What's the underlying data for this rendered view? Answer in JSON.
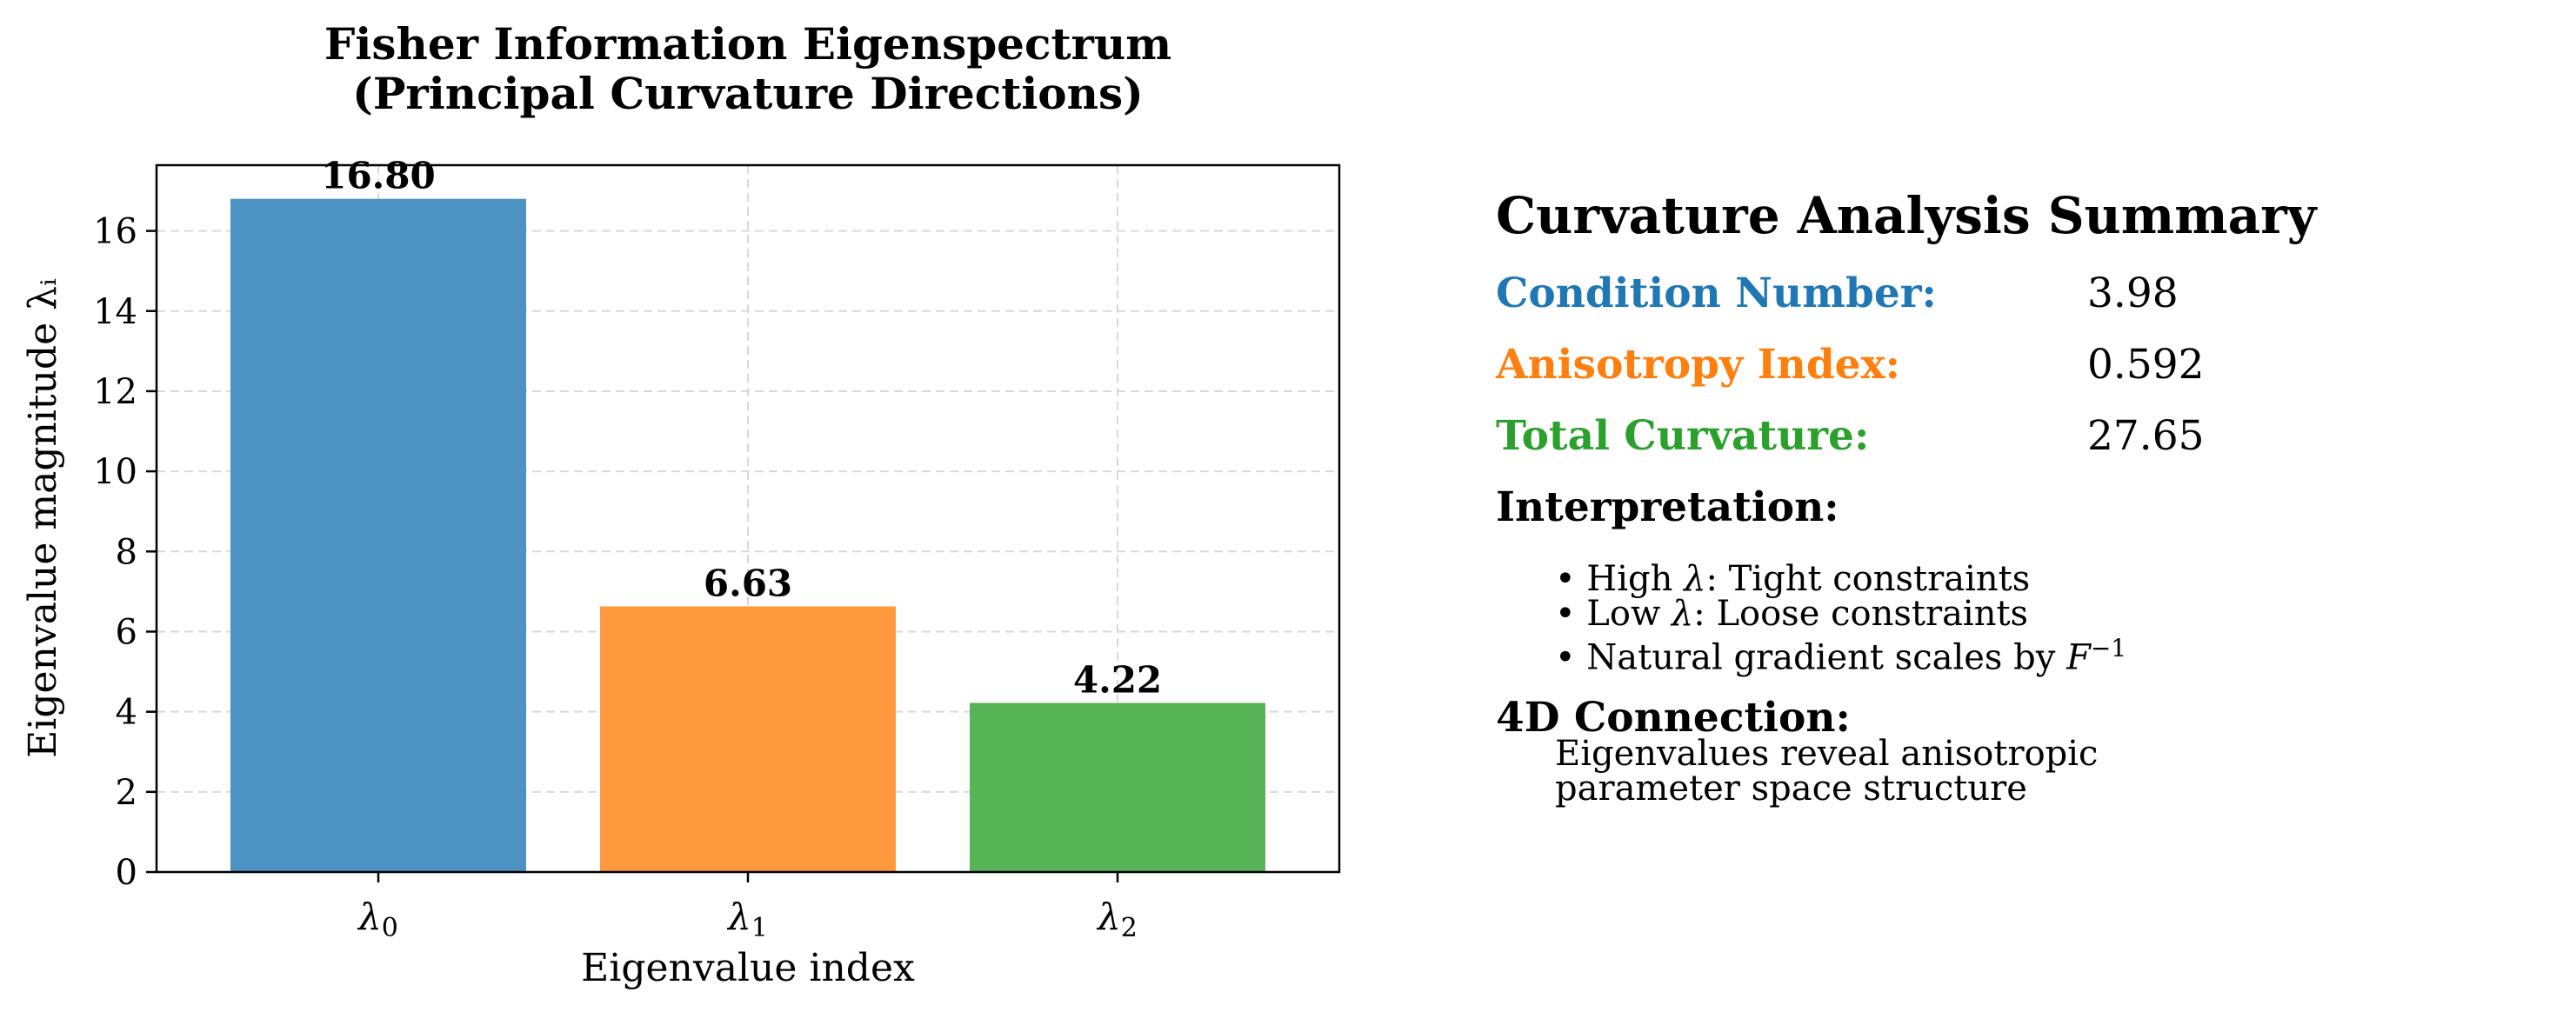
{
  "chart_data": {
    "type": "bar",
    "title_line1": "Fisher Information Eigenspectrum",
    "title_line2": "(Principal Curvature Directions)",
    "xlabel": "Eigenvalue index",
    "ylabel": "Eigenvalue magnitude λᵢ",
    "categories": [
      "λ0",
      "λ1",
      "λ2"
    ],
    "values": [
      16.8,
      6.63,
      4.22
    ],
    "value_labels": [
      "16.80",
      "6.63",
      "4.22"
    ],
    "bar_colors": [
      "#4c92c3",
      "#ff993e",
      "#56b356"
    ],
    "ylim": [
      0,
      17.64
    ],
    "yticks": [
      0,
      2,
      4,
      6,
      8,
      10,
      12,
      14,
      16
    ],
    "grid": true
  },
  "summary": {
    "title": "Curvature Analysis Summary",
    "metrics": [
      {
        "label": "Condition Number:",
        "value": "3.98",
        "color": "#1f77b4"
      },
      {
        "label": "Anisotropy Index:",
        "value": "0.592",
        "color": "#ff7f0e"
      },
      {
        "label": "Total Curvature:",
        "value": "27.65",
        "color": "#2ca02c"
      }
    ],
    "interpretation_heading": "Interpretation:",
    "bullets": [
      {
        "pre": "• High ",
        "sym": "λ",
        "post": ": Tight constraints"
      },
      {
        "pre": "• Low ",
        "sym": "λ",
        "post": ": Loose constraints"
      },
      {
        "pre": "• Natural gradient scales by ",
        "sym": "F",
        "sup": "−1",
        "post": ""
      }
    ],
    "connection_heading": "4D Connection:",
    "connection_lines": [
      "Eigenvalues reveal anisotropic",
      "parameter space structure"
    ]
  }
}
